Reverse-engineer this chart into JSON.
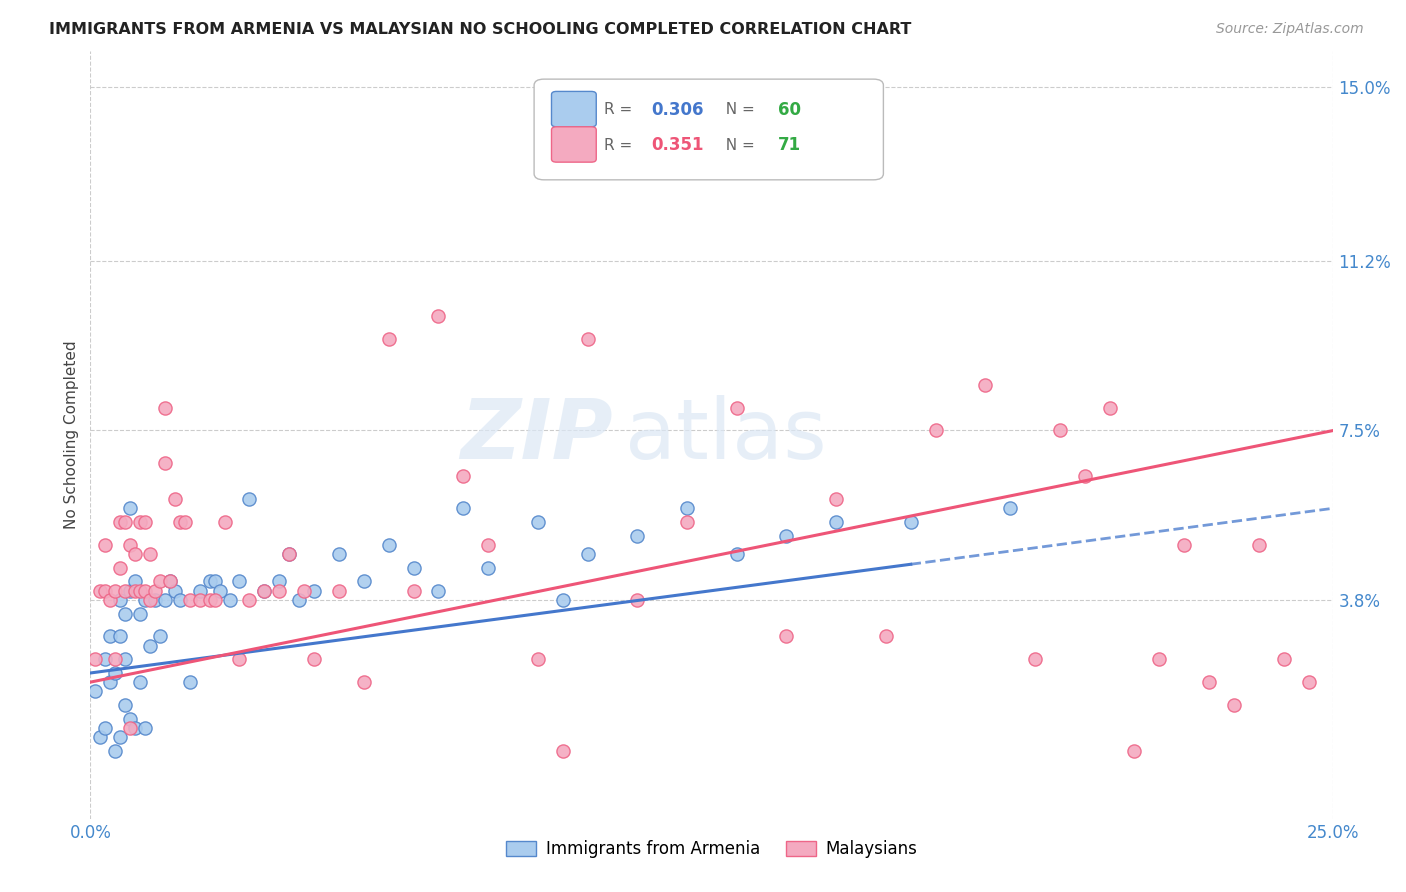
{
  "title": "IMMIGRANTS FROM ARMENIA VS MALAYSIAN NO SCHOOLING COMPLETED CORRELATION CHART",
  "source": "Source: ZipAtlas.com",
  "ylabel": "No Schooling Completed",
  "xlim": [
    0.0,
    0.25
  ],
  "ylim": [
    -0.01,
    0.158
  ],
  "ytick_labels": [
    "3.8%",
    "7.5%",
    "11.2%",
    "15.0%"
  ],
  "ytick_values": [
    0.038,
    0.075,
    0.112,
    0.15
  ],
  "xtick_labels": [
    "0.0%",
    "25.0%"
  ],
  "xtick_values": [
    0.0,
    0.25
  ],
  "r_armenia": 0.306,
  "n_armenia": 60,
  "r_malaysia": 0.351,
  "n_malaysia": 71,
  "color_armenia_fill": "#aaccee",
  "color_malaysia_fill": "#f4aac0",
  "color_armenia_edge": "#5588cc",
  "color_malaysia_edge": "#ee6688",
  "color_armenia_line": "#4477cc",
  "color_malaysia_line": "#ee5577",
  "legend_labels": [
    "Immigrants from Armenia",
    "Malaysians"
  ],
  "watermark_zip": "ZIP",
  "watermark_atlas": "atlas",
  "background_color": "#ffffff",
  "scatter_armenia_x": [
    0.001,
    0.002,
    0.003,
    0.003,
    0.004,
    0.004,
    0.005,
    0.005,
    0.006,
    0.006,
    0.006,
    0.007,
    0.007,
    0.007,
    0.008,
    0.008,
    0.008,
    0.009,
    0.009,
    0.01,
    0.01,
    0.011,
    0.011,
    0.012,
    0.013,
    0.014,
    0.015,
    0.016,
    0.017,
    0.018,
    0.02,
    0.022,
    0.024,
    0.025,
    0.026,
    0.028,
    0.03,
    0.032,
    0.035,
    0.038,
    0.04,
    0.042,
    0.045,
    0.05,
    0.055,
    0.06,
    0.065,
    0.07,
    0.075,
    0.08,
    0.09,
    0.095,
    0.1,
    0.11,
    0.12,
    0.13,
    0.14,
    0.15,
    0.165,
    0.185
  ],
  "scatter_armenia_y": [
    0.018,
    0.008,
    0.01,
    0.025,
    0.02,
    0.03,
    0.005,
    0.022,
    0.008,
    0.03,
    0.038,
    0.015,
    0.035,
    0.025,
    0.012,
    0.04,
    0.058,
    0.01,
    0.042,
    0.02,
    0.035,
    0.01,
    0.038,
    0.028,
    0.038,
    0.03,
    0.038,
    0.042,
    0.04,
    0.038,
    0.02,
    0.04,
    0.042,
    0.042,
    0.04,
    0.038,
    0.042,
    0.06,
    0.04,
    0.042,
    0.048,
    0.038,
    0.04,
    0.048,
    0.042,
    0.05,
    0.045,
    0.04,
    0.058,
    0.045,
    0.055,
    0.038,
    0.048,
    0.052,
    0.058,
    0.048,
    0.052,
    0.055,
    0.055,
    0.058
  ],
  "scatter_malaysia_x": [
    0.001,
    0.002,
    0.003,
    0.003,
    0.004,
    0.005,
    0.005,
    0.006,
    0.006,
    0.007,
    0.007,
    0.008,
    0.008,
    0.009,
    0.009,
    0.01,
    0.01,
    0.011,
    0.011,
    0.012,
    0.012,
    0.013,
    0.014,
    0.015,
    0.015,
    0.016,
    0.017,
    0.018,
    0.019,
    0.02,
    0.022,
    0.024,
    0.025,
    0.027,
    0.03,
    0.032,
    0.035,
    0.038,
    0.04,
    0.043,
    0.045,
    0.05,
    0.055,
    0.06,
    0.065,
    0.07,
    0.075,
    0.08,
    0.09,
    0.095,
    0.1,
    0.11,
    0.12,
    0.13,
    0.14,
    0.15,
    0.16,
    0.17,
    0.18,
    0.19,
    0.195,
    0.2,
    0.205,
    0.21,
    0.215,
    0.22,
    0.225,
    0.23,
    0.235,
    0.24,
    0.245
  ],
  "scatter_malaysia_y": [
    0.025,
    0.04,
    0.04,
    0.05,
    0.038,
    0.04,
    0.025,
    0.045,
    0.055,
    0.04,
    0.055,
    0.01,
    0.05,
    0.04,
    0.048,
    0.04,
    0.055,
    0.04,
    0.055,
    0.038,
    0.048,
    0.04,
    0.042,
    0.068,
    0.08,
    0.042,
    0.06,
    0.055,
    0.055,
    0.038,
    0.038,
    0.038,
    0.038,
    0.055,
    0.025,
    0.038,
    0.04,
    0.04,
    0.048,
    0.04,
    0.025,
    0.04,
    0.02,
    0.095,
    0.04,
    0.1,
    0.065,
    0.05,
    0.025,
    0.005,
    0.095,
    0.038,
    0.055,
    0.08,
    0.03,
    0.06,
    0.03,
    0.075,
    0.085,
    0.025,
    0.075,
    0.065,
    0.08,
    0.005,
    0.025,
    0.05,
    0.02,
    0.015,
    0.05,
    0.025,
    0.02
  ],
  "trendline_armenia_x0": 0.0,
  "trendline_armenia_x1": 0.25,
  "trendline_armenia_y0": 0.022,
  "trendline_armenia_y1": 0.058,
  "trendline_armenia_dash_start": 0.165,
  "trendline_malaysia_x0": 0.0,
  "trendline_malaysia_x1": 0.25,
  "trendline_malaysia_y0": 0.02,
  "trendline_malaysia_y1": 0.075
}
